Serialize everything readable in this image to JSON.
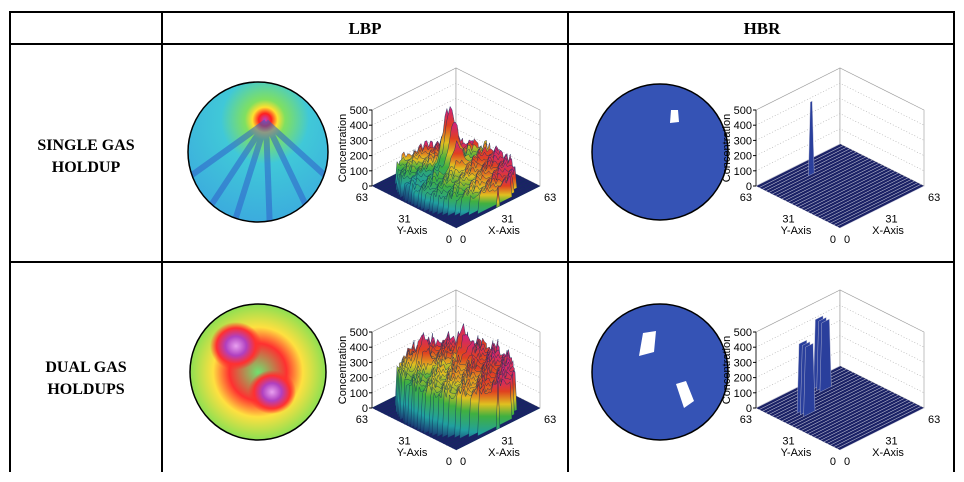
{
  "table": {
    "columns": [
      "LBP",
      "HBR"
    ],
    "rows": [
      {
        "label": [
          "SINGLE GAS",
          "HOLDUP"
        ]
      },
      {
        "label": [
          "DUAL GAS",
          "HOLDUPS"
        ]
      }
    ]
  },
  "surface_plot": {
    "z_label": "Concentration",
    "z_ticks": [
      0,
      100,
      200,
      300,
      400,
      500
    ],
    "x_label": "X-Axis",
    "y_label": "Y-Axis",
    "x_ticks": [
      0,
      31,
      63
    ],
    "y_ticks": [
      0,
      31,
      63
    ]
  }
}
